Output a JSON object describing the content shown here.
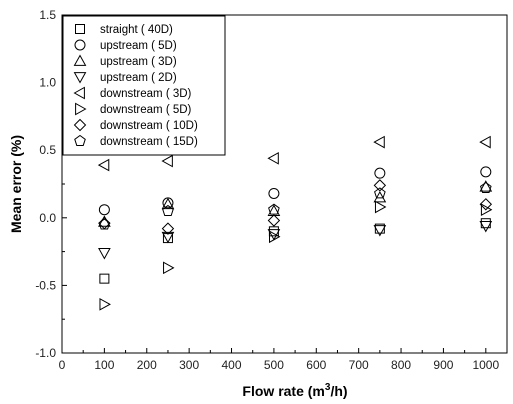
{
  "chart_data": {
    "type": "scatter",
    "xlabel": "Flow rate (m³/h)",
    "xlabel_main": "Flow rate (m",
    "xlabel_sup": "3",
    "xlabel_tail": "/h)",
    "ylabel": "Mean error (%)",
    "xlim": [
      0,
      1050
    ],
    "ylim": [
      -1.0,
      1.5
    ],
    "xticks": [
      0,
      100,
      200,
      300,
      400,
      500,
      600,
      700,
      800,
      900,
      1000
    ],
    "yticks": [
      -1.0,
      -0.5,
      0.0,
      0.5,
      1.0,
      1.5
    ],
    "ytick_labels": [
      "-1.0",
      "-0.5",
      "0.0",
      "0.5",
      "1.0",
      "1.5"
    ],
    "legend_position": "top-left",
    "grid": false,
    "series": [
      {
        "name": "straight ( 40D)",
        "marker": "square",
        "points": [
          [
            100,
            -0.45
          ],
          [
            250,
            -0.15
          ],
          [
            500,
            -0.1
          ],
          [
            750,
            -0.08
          ],
          [
            1000,
            -0.04
          ]
        ]
      },
      {
        "name": "upstream ( 5D)",
        "marker": "circle",
        "points": [
          [
            100,
            0.06
          ],
          [
            250,
            0.11
          ],
          [
            500,
            0.18
          ],
          [
            750,
            0.33
          ],
          [
            1000,
            0.34
          ]
        ]
      },
      {
        "name": "upstream ( 3D)",
        "marker": "triangle-up",
        "points": [
          [
            100,
            -0.03
          ],
          [
            250,
            0.1
          ],
          [
            500,
            0.05
          ],
          [
            750,
            0.15
          ],
          [
            1000,
            0.23
          ]
        ]
      },
      {
        "name": "upstream ( 2D)",
        "marker": "triangle-down",
        "points": [
          [
            100,
            -0.26
          ],
          [
            250,
            -0.14
          ],
          [
            500,
            -0.12
          ],
          [
            750,
            -0.09
          ],
          [
            1000,
            -0.06
          ]
        ]
      },
      {
        "name": "downstream ( 3D)",
        "marker": "triangle-left",
        "points": [
          [
            100,
            0.39
          ],
          [
            250,
            0.42
          ],
          [
            500,
            0.44
          ],
          [
            750,
            0.56
          ],
          [
            1000,
            0.56
          ]
        ]
      },
      {
        "name": "downstream ( 5D)",
        "marker": "triangle-right",
        "points": [
          [
            100,
            -0.64
          ],
          [
            250,
            -0.37
          ],
          [
            500,
            -0.14
          ],
          [
            750,
            0.08
          ],
          [
            1000,
            0.06
          ]
        ]
      },
      {
        "name": "downstream ( 10D)",
        "marker": "diamond",
        "points": [
          [
            100,
            -0.04
          ],
          [
            250,
            -0.08
          ],
          [
            500,
            -0.02
          ],
          [
            750,
            0.24
          ],
          [
            1000,
            0.1
          ]
        ]
      },
      {
        "name": "downstream ( 15D)",
        "marker": "pentagon",
        "points": [
          [
            100,
            -0.05
          ],
          [
            250,
            0.05
          ],
          [
            500,
            0.06
          ],
          [
            750,
            0.18
          ],
          [
            1000,
            0.22
          ]
        ]
      }
    ]
  }
}
